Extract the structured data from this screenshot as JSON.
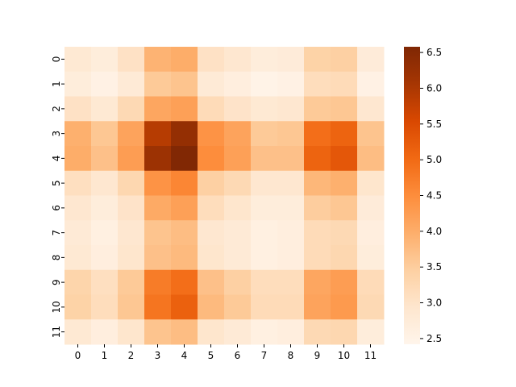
{
  "chart_data": {
    "type": "heatmap",
    "title": "",
    "xlabel": "",
    "ylabel": "",
    "x_categories": [
      "0",
      "1",
      "2",
      "3",
      "4",
      "5",
      "6",
      "7",
      "8",
      "9",
      "10",
      "11"
    ],
    "y_categories": [
      "0",
      "1",
      "2",
      "3",
      "4",
      "5",
      "6",
      "7",
      "8",
      "9",
      "10",
      "11"
    ],
    "values": [
      [
        2.85,
        2.7,
        3.05,
        3.9,
        4.0,
        3.05,
        2.9,
        2.7,
        2.75,
        3.4,
        3.45,
        2.75
      ],
      [
        2.7,
        2.55,
        2.8,
        3.55,
        3.65,
        2.8,
        2.65,
        2.5,
        2.55,
        3.15,
        3.2,
        2.55
      ],
      [
        3.05,
        2.85,
        3.25,
        4.1,
        4.2,
        3.2,
        3.0,
        2.85,
        2.9,
        3.55,
        3.6,
        2.9
      ],
      [
        3.95,
        3.6,
        4.15,
        5.9,
        6.3,
        4.4,
        4.15,
        3.55,
        3.6,
        4.95,
        5.1,
        3.65
      ],
      [
        4.0,
        3.7,
        4.25,
        6.2,
        6.55,
        4.5,
        4.2,
        3.7,
        3.7,
        5.1,
        5.3,
        3.75
      ],
      [
        3.1,
        2.9,
        3.3,
        4.4,
        4.6,
        3.45,
        3.25,
        2.9,
        2.9,
        3.85,
        3.95,
        2.95
      ],
      [
        2.9,
        2.7,
        3.0,
        4.05,
        4.2,
        3.15,
        2.95,
        2.7,
        2.7,
        3.5,
        3.6,
        2.75
      ],
      [
        2.8,
        2.6,
        2.9,
        3.65,
        3.75,
        2.9,
        2.8,
        2.6,
        2.65,
        3.2,
        3.25,
        2.65
      ],
      [
        2.85,
        2.65,
        2.95,
        3.7,
        3.8,
        2.95,
        2.8,
        2.6,
        2.65,
        3.2,
        3.3,
        2.7
      ],
      [
        3.35,
        3.1,
        3.55,
        4.75,
        4.95,
        3.7,
        3.45,
        3.15,
        3.15,
        4.1,
        4.25,
        3.2
      ],
      [
        3.4,
        3.15,
        3.6,
        4.85,
        5.15,
        3.8,
        3.55,
        3.2,
        3.2,
        4.15,
        4.3,
        3.25
      ],
      [
        2.85,
        2.65,
        2.95,
        3.65,
        3.75,
        2.95,
        2.8,
        2.6,
        2.65,
        3.25,
        3.3,
        2.7
      ]
    ],
    "vmin": 2.42,
    "vmax": 6.58,
    "colormap": [
      "#fff5eb",
      "#fee6ce",
      "#fdd0a2",
      "#fdae6b",
      "#fd8d3c",
      "#f16913",
      "#d94801",
      "#a63603",
      "#7f2704"
    ],
    "colorbar": {
      "ticks": [
        "2.5",
        "3.0",
        "3.5",
        "4.0",
        "4.5",
        "5.0",
        "5.5",
        "6.0",
        "6.5"
      ],
      "tick_values": [
        2.5,
        3.0,
        3.5,
        4.0,
        4.5,
        5.0,
        5.5,
        6.0,
        6.5
      ]
    }
  }
}
